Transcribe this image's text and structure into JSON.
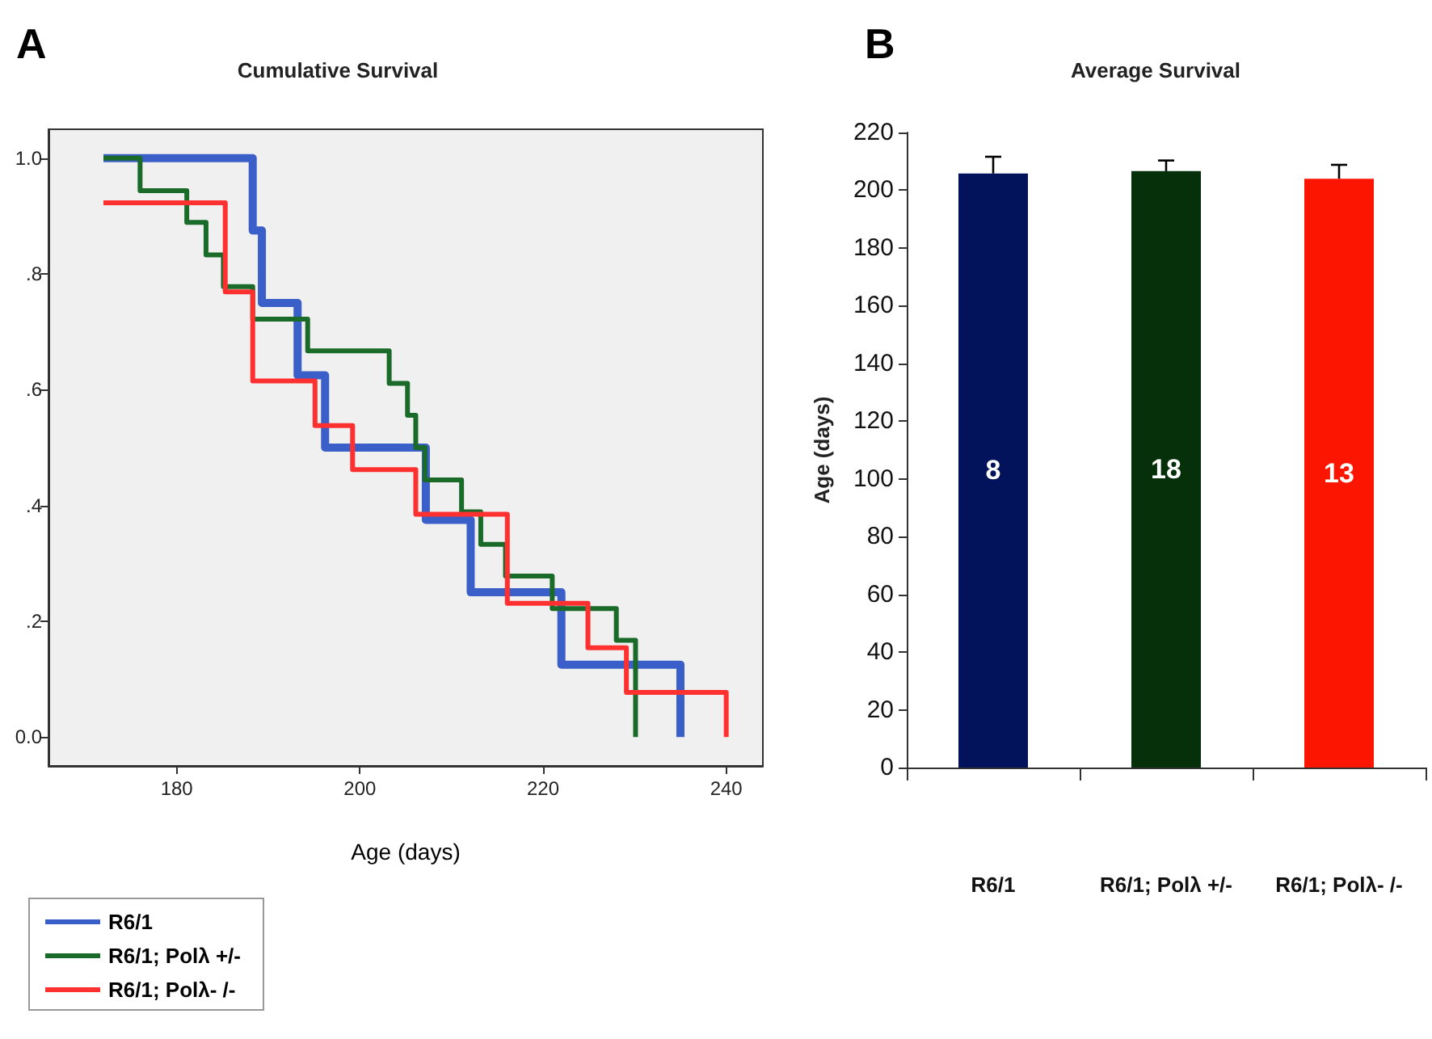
{
  "chart_data": [
    {
      "type": "step",
      "title": "Cumulative Survival",
      "xlabel": "Age (days)",
      "annotations": [
        "A"
      ],
      "xlim": [
        166,
        244
      ],
      "xticks": [
        180,
        200,
        220,
        240
      ],
      "ylim": [
        -0.05,
        1.05
      ],
      "yticks": [
        {
          "value": 0,
          "label": "0.0"
        },
        {
          "value": 0.2,
          "label": ".2"
        },
        {
          "value": 0.4,
          "label": ".4"
        },
        {
          "value": 0.6,
          "label": ".6"
        },
        {
          "value": 0.8,
          "label": ".8"
        },
        {
          "value": 1,
          "label": "1.0"
        }
      ],
      "legend": "bottom left",
      "grid": false,
      "marker": "none",
      "line_style": "solid",
      "series": [
        {
          "name": "R6/1",
          "color": "#3a5fc8",
          "x": [
            172,
            188.3,
            189.3,
            193.2,
            196.2,
            207.2,
            212.1,
            222,
            235
          ],
          "values": [
            1,
            0.875,
            0.75,
            0.625,
            0.5,
            0.375,
            0.25,
            0.125,
            0
          ]
        },
        {
          "name": "R6/1; Polλ +/-",
          "color": "#1a6b2a",
          "x": [
            172,
            176,
            181.1,
            183.2,
            185.1,
            188.3,
            194.3,
            203.2,
            205.2,
            206.1,
            207.1,
            211.1,
            213.2,
            215.9,
            221,
            228,
            230.1
          ],
          "values": [
            1,
            0.944,
            0.889,
            0.833,
            0.778,
            0.722,
            0.667,
            0.611,
            0.556,
            0.5,
            0.444,
            0.389,
            0.333,
            0.278,
            0.222,
            0.167,
            0
          ]
        },
        {
          "name": "R6/1; Polλ- /-",
          "color": "#ff3030",
          "x": [
            172,
            185.3,
            188.3,
            195.1,
            199.2,
            206.1,
            216.1,
            224.9,
            229.1,
            240
          ],
          "values": [
            0.923,
            0.769,
            0.615,
            0.538,
            0.462,
            0.385,
            0.231,
            0.154,
            0.077,
            0
          ]
        }
      ]
    },
    {
      "type": "bar",
      "title": "Average Survival",
      "ylabel": "Age (days)",
      "annotations": [
        "B",
        "8",
        "18",
        "13"
      ],
      "categories": [
        "R6/1",
        "R6/1; Polλ +/-",
        "R6/1; Polλ- /-"
      ],
      "values": [
        205.8,
        206.6,
        204.0
      ],
      "colors": [
        "#02135c",
        "#06300a",
        "#fc1500"
      ],
      "errors": [
        [
          205.8,
          211.6
        ],
        [
          206.6,
          210.3
        ],
        [
          204.0,
          208.8
        ]
      ],
      "ylim": [
        0,
        220
      ],
      "yticks": [
        0,
        20,
        40,
        60,
        80,
        100,
        120,
        140,
        160,
        180,
        200,
        220
      ],
      "grid": false,
      "legend": false
    }
  ]
}
